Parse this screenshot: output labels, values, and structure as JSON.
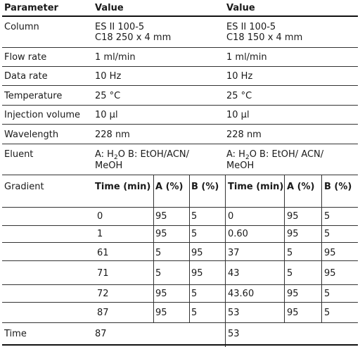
{
  "header": {
    "parameter": "Parameter",
    "value1": "Value",
    "value2": "Value"
  },
  "rows": {
    "column": {
      "label": "Column",
      "v1_line1": "ES II 100-5",
      "v1_line2": "C18 250 x 4 mm",
      "v2_line1": "ES II 100-5",
      "v2_line2": "C18 150 x 4 mm"
    },
    "flow_rate": {
      "label": "Flow rate",
      "v1": "1 ml/min",
      "v2": "1 ml/min"
    },
    "data_rate": {
      "label": "Data rate",
      "v1": "10 Hz",
      "v2": "10 Hz"
    },
    "temperature": {
      "label": "Temperature",
      "v1": "25 °C",
      "v2": "25 °C"
    },
    "injection_volume": {
      "label": "Injection volume",
      "v1": "10 µl",
      "v2": "10 µl"
    },
    "wavelength": {
      "label": "Wavelength",
      "v1": "228 nm",
      "v2": "228 nm"
    },
    "eluent": {
      "label": "Eluent",
      "v1_a_prefix": "A: H",
      "v1_a_sub": "2",
      "v1_a_suffix": "O B: EtOH/ACN/",
      "v1_line2": "MeOH",
      "v2_a_prefix": "A: H",
      "v2_a_sub": "2",
      "v2_a_suffix": "O B: EtOH/ ACN/",
      "v2_line2": "MeOH"
    }
  },
  "gradient": {
    "label": "Gradient",
    "headers": [
      "Time (min)",
      "A (%)",
      "B (%)",
      "Time (min)",
      "A (%)",
      "B (%)"
    ],
    "rows": [
      [
        "0",
        "95",
        "5",
        "0",
        "95",
        "5"
      ],
      [
        "1",
        "95",
        "5",
        "0.60",
        "95",
        "5"
      ],
      [
        "61",
        "5",
        "95",
        "37",
        "5",
        "95"
      ],
      [
        "71",
        "5",
        "95",
        "43",
        "5",
        "95"
      ],
      [
        "72",
        "95",
        "5",
        "43.60",
        "95",
        "5"
      ],
      [
        "87",
        "95",
        "5",
        "53",
        "95",
        "5"
      ]
    ]
  },
  "time_row": {
    "label": "Time",
    "v1": "87",
    "v2": "53"
  }
}
